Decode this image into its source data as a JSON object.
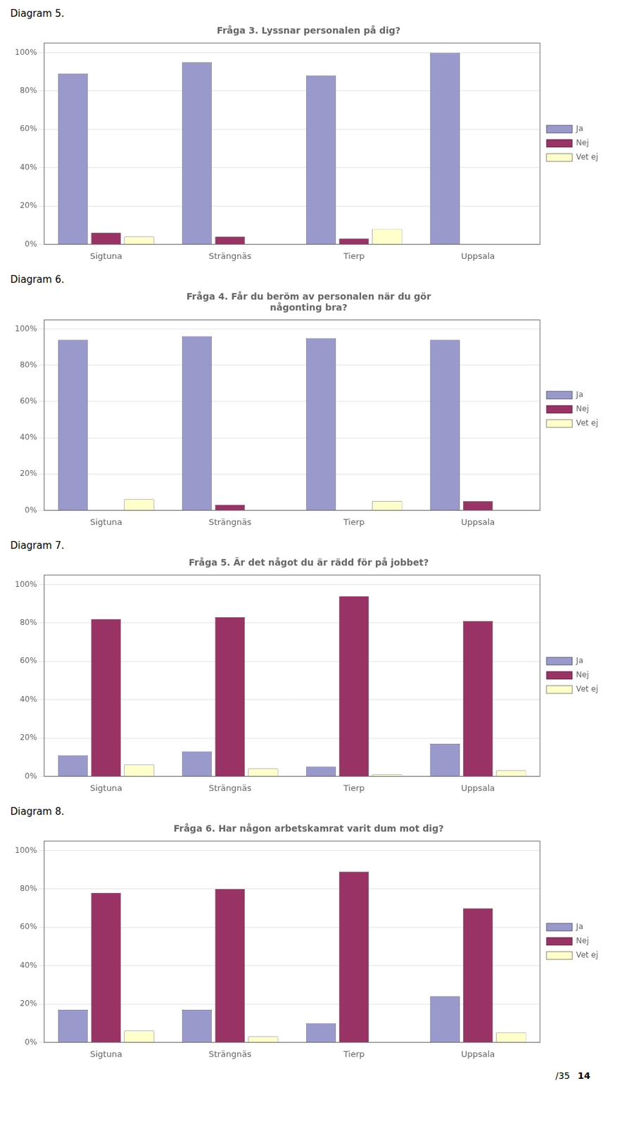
{
  "chart_data": [
    {
      "type": "bar",
      "subtitle": "Diagram 5.",
      "title": "Fråga 3. Lyssnar personalen på dig?",
      "categories": [
        "Sigtuna",
        "Strängnäs",
        "Tierp",
        "Uppsala"
      ],
      "series": [
        {
          "name": "Ja",
          "color": "#9999CC",
          "values": [
            0.89,
            0.95,
            0.88,
            1.0
          ]
        },
        {
          "name": "Nej",
          "color": "#993366",
          "values": [
            0.06,
            0.04,
            0.03,
            0.0
          ]
        },
        {
          "name": "Vet ej",
          "color": "#FFFFCC",
          "values": [
            0.04,
            0.0,
            0.08,
            0.0
          ]
        }
      ],
      "ylim": [
        0,
        1.05
      ],
      "yticks": [
        {
          "value": 0.0,
          "label": "0%"
        },
        {
          "value": 0.2,
          "label": "20%"
        },
        {
          "value": 0.4,
          "label": "40%"
        },
        {
          "value": 0.6,
          "label": "60%"
        },
        {
          "value": 0.8,
          "label": "80%"
        },
        {
          "value": 1.0,
          "label": "100%"
        }
      ],
      "grid": true,
      "legend": "right"
    },
    {
      "type": "bar",
      "subtitle": "Diagram 6.",
      "title": "Fråga 4. Får du beröm av personalen när du gör\nnågonting bra?",
      "categories": [
        "Sigtuna",
        "Strängnäs",
        "Tierp",
        "Uppsala"
      ],
      "series": [
        {
          "name": "Ja",
          "color": "#9999CC",
          "values": [
            0.94,
            0.96,
            0.95,
            0.94
          ]
        },
        {
          "name": "Nej",
          "color": "#993366",
          "values": [
            0.0,
            0.03,
            0.0,
            0.05
          ]
        },
        {
          "name": "Vet ej",
          "color": "#FFFFCC",
          "values": [
            0.06,
            0.0,
            0.05,
            0.0
          ]
        }
      ],
      "ylim": [
        0,
        1.05
      ],
      "yticks": [
        {
          "value": 0.0,
          "label": "0%"
        },
        {
          "value": 0.2,
          "label": "20%"
        },
        {
          "value": 0.4,
          "label": "40%"
        },
        {
          "value": 0.6,
          "label": "60%"
        },
        {
          "value": 0.8,
          "label": "80%"
        },
        {
          "value": 1.0,
          "label": "100%"
        }
      ],
      "grid": true,
      "legend": "right"
    },
    {
      "type": "bar",
      "subtitle": "Diagram 7.",
      "title": "Fråga 5. Är det något du är rädd för på jobbet?",
      "categories": [
        "Sigtuna",
        "Strängnäs",
        "Tierp",
        "Uppsala"
      ],
      "series": [
        {
          "name": "Ja",
          "color": "#9999CC",
          "values": [
            0.11,
            0.13,
            0.05,
            0.17
          ]
        },
        {
          "name": "Nej",
          "color": "#993366",
          "values": [
            0.82,
            0.83,
            0.94,
            0.81
          ]
        },
        {
          "name": "Vet ej",
          "color": "#FFFFCC",
          "values": [
            0.06,
            0.04,
            0.01,
            0.03
          ]
        }
      ],
      "ylim": [
        0,
        1.05
      ],
      "yticks": [
        {
          "value": 0.0,
          "label": "0%"
        },
        {
          "value": 0.2,
          "label": "20%"
        },
        {
          "value": 0.4,
          "label": "40%"
        },
        {
          "value": 0.6,
          "label": "60%"
        },
        {
          "value": 0.8,
          "label": "80%"
        },
        {
          "value": 1.0,
          "label": "100%"
        }
      ],
      "grid": true,
      "legend": "right"
    },
    {
      "type": "bar",
      "subtitle": "Diagram 8.",
      "title": "Fråga 6. Har någon arbetskamrat varit dum mot dig?",
      "categories": [
        "Sigtuna",
        "Strängnäs",
        "Tierp",
        "Uppsala"
      ],
      "series": [
        {
          "name": "Ja",
          "color": "#9999CC",
          "values": [
            0.17,
            0.17,
            0.1,
            0.24
          ]
        },
        {
          "name": "Nej",
          "color": "#993366",
          "values": [
            0.78,
            0.8,
            0.89,
            0.7
          ]
        },
        {
          "name": "Vet ej",
          "color": "#FFFFCC",
          "values": [
            0.06,
            0.03,
            0.0,
            0.05
          ]
        }
      ],
      "ylim": [
        0,
        1.05
      ],
      "yticks": [
        {
          "value": 0.0,
          "label": "0%"
        },
        {
          "value": 0.2,
          "label": "20%"
        },
        {
          "value": 0.4,
          "label": "40%"
        },
        {
          "value": 0.6,
          "label": "60%"
        },
        {
          "value": 0.8,
          "label": "80%"
        },
        {
          "value": 1.0,
          "label": "100%"
        }
      ],
      "grid": true,
      "legend": "right",
      "annotations": [
        "/35",
        "14"
      ]
    }
  ]
}
